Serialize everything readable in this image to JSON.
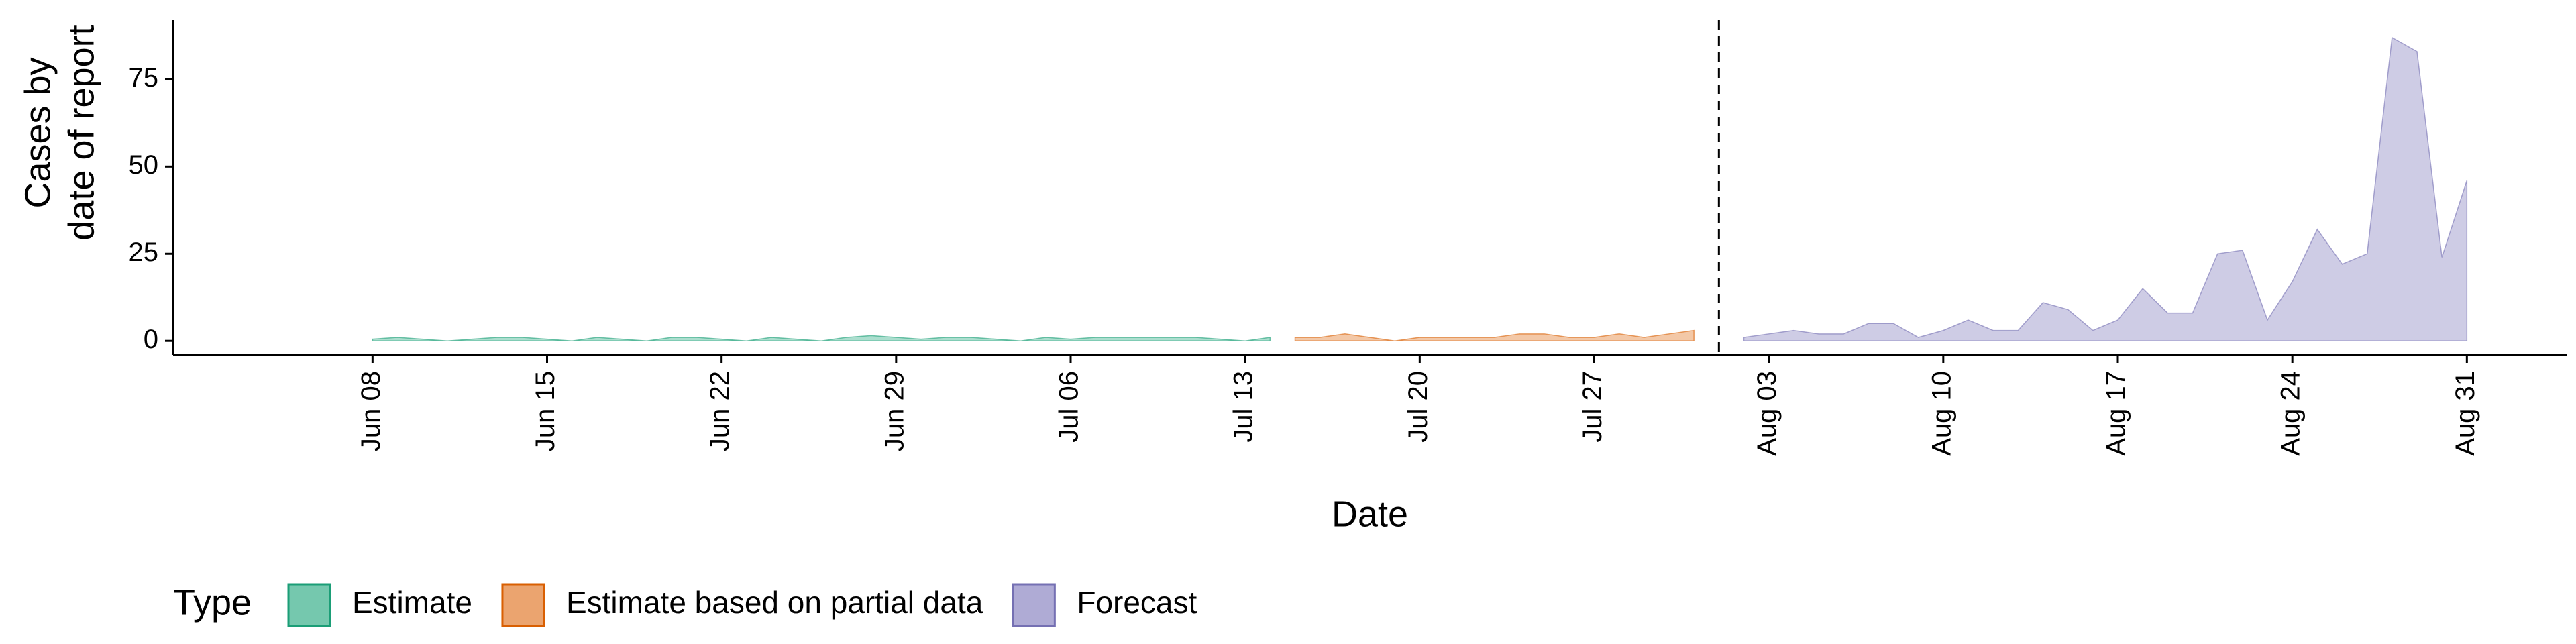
{
  "chart_data": {
    "type": "area",
    "xlabel": "Date",
    "ylabel": [
      "Cases by",
      "date of report"
    ],
    "legend_title": "Type",
    "legend": "bottom-left",
    "xlim": [
      "May 31",
      "Sep 04"
    ],
    "xticks": [
      "Jun 08",
      "Jun 15",
      "Jun 22",
      "Jun 29",
      "Jul 06",
      "Jul 13",
      "Jul 20",
      "Jul 27",
      "Aug 03",
      "Aug 10",
      "Aug 17",
      "Aug 24",
      "Aug 31"
    ],
    "ylim": [
      -4,
      92
    ],
    "yticks": [
      0,
      25,
      50,
      75
    ],
    "vline": "Aug 01",
    "series": [
      {
        "name": "Estimate",
        "color": "#66c2a5",
        "stroke": "#1b9e77",
        "x": [
          "Jun 08",
          "Jun 09",
          "Jun 10",
          "Jun 11",
          "Jun 12",
          "Jun 13",
          "Jun 14",
          "Jun 15",
          "Jun 16",
          "Jun 17",
          "Jun 18",
          "Jun 19",
          "Jun 20",
          "Jun 21",
          "Jun 22",
          "Jun 23",
          "Jun 24",
          "Jun 25",
          "Jun 26",
          "Jun 27",
          "Jun 28",
          "Jun 29",
          "Jun 30",
          "Jul 01",
          "Jul 02",
          "Jul 03",
          "Jul 04",
          "Jul 05",
          "Jul 06",
          "Jul 07",
          "Jul 08",
          "Jul 09",
          "Jul 10",
          "Jul 11",
          "Jul 12",
          "Jul 13",
          "Jul 14"
        ],
        "values": [
          0.5,
          1,
          0.5,
          0,
          0.5,
          1,
          1,
          0.5,
          0,
          1,
          0.5,
          0,
          1,
          1,
          0.5,
          0,
          1,
          0.5,
          0,
          1,
          1.5,
          1,
          0.5,
          1,
          1,
          0.5,
          0,
          1,
          0.5,
          1,
          1,
          1,
          1,
          1,
          0.5,
          0,
          1
        ]
      },
      {
        "name": "Estimate based on partial data",
        "color": "#e99a5f",
        "stroke": "#d95f02",
        "x": [
          "Jul 15",
          "Jul 16",
          "Jul 17",
          "Jul 18",
          "Jul 19",
          "Jul 20",
          "Jul 21",
          "Jul 22",
          "Jul 23",
          "Jul 24",
          "Jul 25",
          "Jul 26",
          "Jul 27",
          "Jul 28",
          "Jul 29",
          "Jul 30",
          "Jul 31"
        ],
        "values": [
          1,
          1,
          2,
          1,
          0,
          1,
          1,
          1,
          1,
          2,
          2,
          1,
          1,
          2,
          1,
          2,
          3
        ]
      },
      {
        "name": "Forecast",
        "color": "#a6a2d0",
        "stroke": "#7570b3",
        "x": [
          "Aug 02",
          "Aug 03",
          "Aug 04",
          "Aug 05",
          "Aug 06",
          "Aug 07",
          "Aug 08",
          "Aug 09",
          "Aug 10",
          "Aug 11",
          "Aug 12",
          "Aug 13",
          "Aug 14",
          "Aug 15",
          "Aug 16",
          "Aug 17",
          "Aug 18",
          "Aug 19",
          "Aug 20",
          "Aug 21",
          "Aug 22",
          "Aug 23",
          "Aug 24",
          "Aug 25",
          "Aug 26",
          "Aug 27",
          "Aug 28",
          "Aug 29",
          "Aug 30",
          "Aug 31"
        ],
        "values": [
          1,
          2,
          3,
          2,
          2,
          5,
          5,
          1,
          3,
          6,
          3,
          3,
          11,
          9,
          3,
          6,
          15,
          8,
          8,
          25,
          26,
          6,
          17,
          32,
          22,
          25,
          87,
          83,
          24,
          46
        ]
      }
    ]
  }
}
